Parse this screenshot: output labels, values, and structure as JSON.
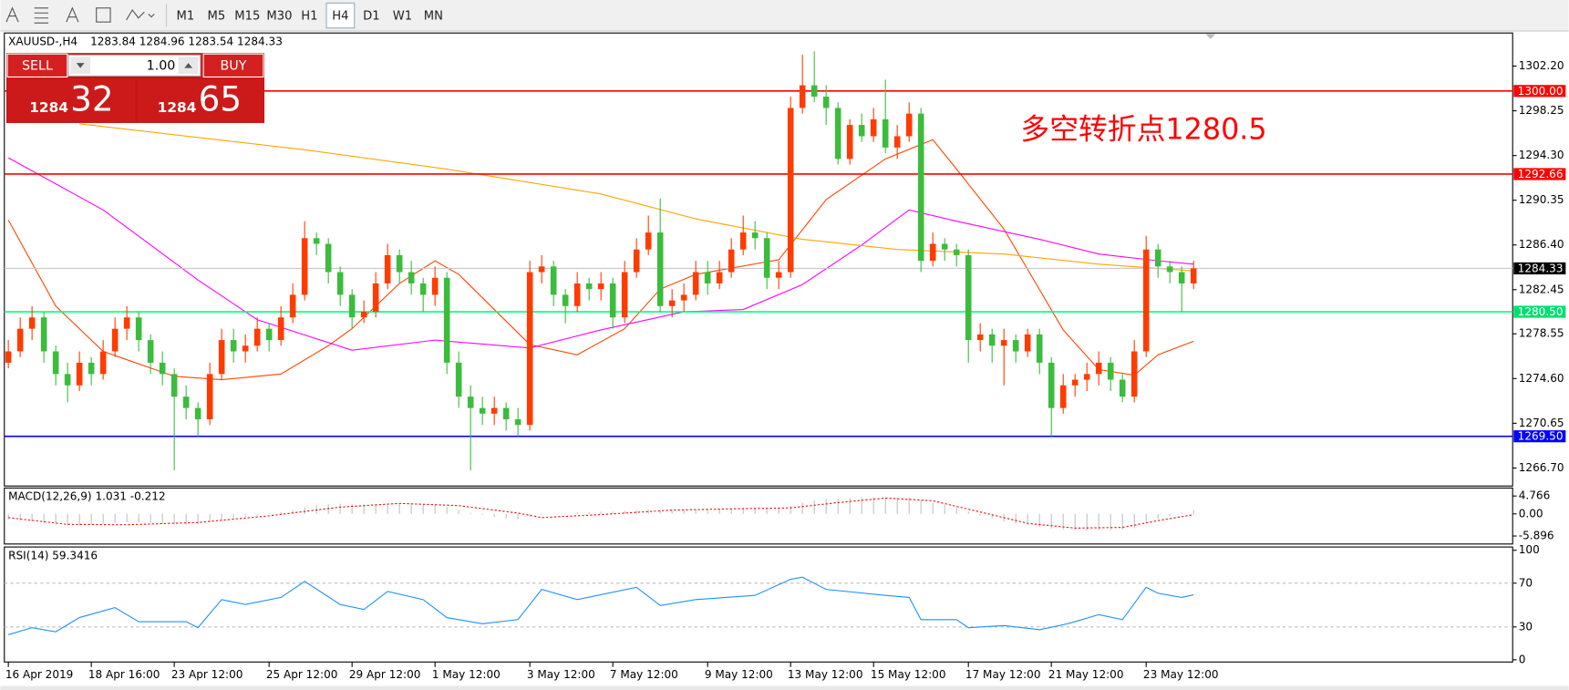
{
  "toolbar": {
    "timeframes": [
      "M1",
      "M5",
      "M15",
      "M30",
      "H1",
      "H4",
      "D1",
      "W1",
      "MN"
    ]
  },
  "trade_panel": {
    "sell": "SELL",
    "lot": "1.00",
    "buy": "BUY",
    "bid_big": "1284",
    "bid_small": "32",
    "ask_big": "1284",
    "ask_small": "65"
  },
  "chart_data": [
    {
      "type": "candlestick",
      "title": "XAUUSD-,H4",
      "quote": "1283.84 1284.96 1283.54 1284.33",
      "annotation": "多空转折点1280.5",
      "up_color": "#ff3c00",
      "down_color": "#3cbc3c",
      "categories": [
        "16 Apr 2019",
        null,
        null,
        null,
        null,
        null,
        null,
        "18 Apr 16:00",
        null,
        null,
        null,
        null,
        null,
        null,
        "23 Apr 12:00",
        null,
        null,
        null,
        null,
        null,
        null,
        null,
        "25 Apr 12:00",
        null,
        null,
        null,
        null,
        null,
        null,
        "29 Apr 12:00",
        null,
        null,
        null,
        null,
        null,
        null,
        "1 May 12:00",
        null,
        null,
        null,
        null,
        null,
        null,
        null,
        "3 May 12:00",
        null,
        null,
        null,
        null,
        null,
        null,
        "7 May 12:00",
        null,
        null,
        null,
        null,
        null,
        null,
        null,
        "9 May 12:00",
        null,
        null,
        null,
        null,
        null,
        null,
        "13 May 12:00",
        null,
        null,
        null,
        null,
        null,
        null,
        "15 May 12:00",
        null,
        null,
        null,
        null,
        null,
        null,
        null,
        "17 May 12:00",
        null,
        null,
        null,
        null,
        null,
        null,
        "21 May 12:00",
        null,
        null,
        null,
        null,
        null,
        null,
        null,
        "23 May 12:00",
        null,
        null,
        null,
        null
      ],
      "candles": [
        [
          1276,
          1278,
          1275.5,
          1277
        ],
        [
          1277,
          1280,
          1276.5,
          1279
        ],
        [
          1279,
          1281,
          1278,
          1280
        ],
        [
          1280,
          1280.5,
          1276,
          1277
        ],
        [
          1277,
          1277.5,
          1274,
          1275
        ],
        [
          1275,
          1276,
          1272.5,
          1274
        ],
        [
          1274,
          1277,
          1273.5,
          1276
        ],
        [
          1276,
          1276.5,
          1274,
          1275
        ],
        [
          1275,
          1278,
          1274.5,
          1277
        ],
        [
          1277,
          1280,
          1276.5,
          1279
        ],
        [
          1279,
          1281,
          1278,
          1280
        ],
        [
          1280,
          1280.5,
          1277,
          1278
        ],
        [
          1278,
          1278.5,
          1275,
          1276
        ],
        [
          1276,
          1277,
          1274,
          1275
        ],
        [
          1275,
          1275.5,
          1266.5,
          1273
        ],
        [
          1273,
          1274,
          1271,
          1272
        ],
        [
          1272,
          1272.5,
          1269.5,
          1271
        ],
        [
          1271,
          1276,
          1270.5,
          1275
        ],
        [
          1275,
          1279,
          1274.5,
          1278
        ],
        [
          1278,
          1279,
          1276,
          1277
        ],
        [
          1277,
          1278.5,
          1276,
          1277.5
        ],
        [
          1277.5,
          1280,
          1277,
          1279
        ],
        [
          1279,
          1279.5,
          1277,
          1278
        ],
        [
          1278,
          1281,
          1277.5,
          1280
        ],
        [
          1280,
          1283,
          1279.5,
          1282
        ],
        [
          1282,
          1288.5,
          1281.5,
          1287
        ],
        [
          1287,
          1287.5,
          1285.5,
          1286.5
        ],
        [
          1286.5,
          1287,
          1283,
          1284
        ],
        [
          1284,
          1284.5,
          1281,
          1282
        ],
        [
          1282,
          1282.5,
          1279,
          1280
        ],
        [
          1280,
          1281.5,
          1279.5,
          1280.5
        ],
        [
          1280.5,
          1284,
          1280,
          1283
        ],
        [
          1283,
          1286.5,
          1282.5,
          1285.5
        ],
        [
          1285.5,
          1286,
          1283,
          1284
        ],
        [
          1284,
          1285,
          1282,
          1283
        ],
        [
          1283,
          1283.5,
          1280.5,
          1282
        ],
        [
          1282,
          1284.5,
          1281,
          1283.5
        ],
        [
          1283.5,
          1284,
          1275,
          1276
        ],
        [
          1276,
          1277,
          1272,
          1273
        ],
        [
          1273,
          1274,
          1266.5,
          1272
        ],
        [
          1272,
          1273,
          1270.5,
          1271.5
        ],
        [
          1271.5,
          1273,
          1270.5,
          1272
        ],
        [
          1272,
          1272.5,
          1270,
          1271
        ],
        [
          1271,
          1272,
          1269.5,
          1270.5
        ],
        [
          1270.5,
          1285,
          1270,
          1284
        ],
        [
          1284,
          1285.5,
          1283,
          1284.5
        ],
        [
          1284.5,
          1285,
          1281,
          1282
        ],
        [
          1282,
          1282.5,
          1279.5,
          1281
        ],
        [
          1281,
          1284,
          1280.5,
          1283
        ],
        [
          1283,
          1283.5,
          1281.5,
          1282.5
        ],
        [
          1282.5,
          1284,
          1281.5,
          1283
        ],
        [
          1283,
          1283.5,
          1279,
          1280
        ],
        [
          1280,
          1285,
          1279.5,
          1284
        ],
        [
          1284,
          1287,
          1283.5,
          1286
        ],
        [
          1286,
          1289,
          1285.5,
          1287.5
        ],
        [
          1287.5,
          1290.5,
          1280.5,
          1281
        ],
        [
          1281,
          1282.5,
          1280,
          1281.5
        ],
        [
          1281.5,
          1283,
          1280.5,
          1282
        ],
        [
          1282,
          1285,
          1281.5,
          1284
        ],
        [
          1284,
          1285,
          1282,
          1283
        ],
        [
          1283,
          1285,
          1282.5,
          1284
        ],
        [
          1284,
          1287,
          1283.5,
          1286
        ],
        [
          1286,
          1289,
          1285.5,
          1287.5
        ],
        [
          1287.5,
          1288.5,
          1286,
          1287
        ],
        [
          1287,
          1287.5,
          1282.5,
          1283.5
        ],
        [
          1283.5,
          1285,
          1282.5,
          1284
        ],
        [
          1284,
          1299.5,
          1283.5,
          1298.5
        ],
        [
          1298.5,
          1303.2,
          1298,
          1300.5
        ],
        [
          1300.5,
          1303.5,
          1299,
          1299.5
        ],
        [
          1299.5,
          1300.5,
          1297,
          1298.5
        ],
        [
          1298.5,
          1299,
          1293.5,
          1294
        ],
        [
          1294,
          1297.5,
          1293.5,
          1297
        ],
        [
          1297,
          1298,
          1295.5,
          1296
        ],
        [
          1296,
          1298.5,
          1295.5,
          1297.5
        ],
        [
          1297.5,
          1301,
          1294.5,
          1295
        ],
        [
          1295,
          1297,
          1294,
          1296
        ],
        [
          1296,
          1299,
          1295.5,
          1298
        ],
        [
          1298,
          1298.5,
          1284,
          1285
        ],
        [
          1285,
          1287.5,
          1284.5,
          1286.5
        ],
        [
          1286.5,
          1287,
          1285,
          1286
        ],
        [
          1286,
          1286.5,
          1284.5,
          1285.5
        ],
        [
          1285.5,
          1286,
          1276,
          1278
        ],
        [
          1278,
          1279.5,
          1277,
          1278.5
        ],
        [
          1278.5,
          1279,
          1276,
          1277.5
        ],
        [
          1277.5,
          1279,
          1274,
          1278
        ],
        [
          1278,
          1278.5,
          1276,
          1277
        ],
        [
          1277,
          1279,
          1276.5,
          1278.5
        ],
        [
          1278.5,
          1279,
          1275,
          1276
        ],
        [
          1276,
          1276.5,
          1269.5,
          1272
        ],
        [
          1272,
          1275,
          1271.5,
          1274
        ],
        [
          1274,
          1275,
          1273,
          1274.5
        ],
        [
          1274.5,
          1276,
          1273.5,
          1275
        ],
        [
          1275,
          1277,
          1274,
          1276
        ],
        [
          1276,
          1276.5,
          1273.5,
          1274.5
        ],
        [
          1274.5,
          1275,
          1272.5,
          1273
        ],
        [
          1273,
          1278,
          1272.5,
          1277
        ],
        [
          1277,
          1287.2,
          1276.5,
          1286
        ],
        [
          1286,
          1286.5,
          1283.5,
          1284.5
        ],
        [
          1284.5,
          1285,
          1283,
          1284
        ],
        [
          1284,
          1284.5,
          1280.5,
          1283
        ],
        [
          1283,
          1285,
          1282.5,
          1284.33
        ]
      ],
      "lines": [
        {
          "color": "#ff4500",
          "x": [
            0,
            4,
            8,
            14,
            18,
            23,
            27,
            29,
            33,
            36,
            38,
            44,
            48,
            52,
            55,
            58,
            65,
            69,
            74,
            78,
            80,
            84,
            89,
            92,
            95,
            97,
            100
          ],
          "values": [
            1288.6,
            1281,
            1277,
            1274.8,
            1274.5,
            1275,
            1277.5,
            1279,
            1283,
            1285,
            1283.8,
            1277.6,
            1276.7,
            1279,
            1282.5,
            1283.8,
            1285.1,
            1290.4,
            1294,
            1295.7,
            1293.1,
            1287.8,
            1278.9,
            1275.4,
            1274.9,
            1276.7,
            1277.9
          ]
        },
        {
          "color": "#ff00ff",
          "x": [
            0,
            8,
            16,
            21,
            29,
            36,
            44,
            50,
            57,
            62,
            67,
            72,
            76,
            80,
            87,
            92,
            97,
            100
          ],
          "values": [
            1294.1,
            1289.5,
            1283.3,
            1279.8,
            1277.1,
            1278,
            1277.3,
            1278.9,
            1280.5,
            1280.7,
            1282.9,
            1286.4,
            1289.5,
            1288.5,
            1286.9,
            1285.6,
            1285,
            1284.7
          ]
        },
        {
          "color": "#ffa500",
          "x": [
            6,
            25,
            37,
            50,
            58,
            67,
            75,
            84,
            92,
            100
          ],
          "values": [
            1297.1,
            1294.8,
            1293.1,
            1290.9,
            1288.7,
            1286.9,
            1286,
            1285.6,
            1284.7,
            1284.1
          ]
        }
      ],
      "levels": [
        {
          "value": 1300,
          "label": "1300.00",
          "color": "#ff0000",
          "box": "#ff0000"
        },
        {
          "value": 1292.66,
          "label": "1292.66",
          "color": "#ff0000",
          "box": "#ff0000"
        },
        {
          "value": 1284.33,
          "label": "1284.33",
          "color": "#c8c8c8",
          "box": "#000000"
        },
        {
          "value": 1280.5,
          "label": "1280.50",
          "color": "#00ff7f",
          "box": "#00e070"
        },
        {
          "value": 1269.5,
          "label": "1269.50",
          "color": "#0000ff",
          "box": "#0000ff"
        }
      ],
      "ylim": [
        1265.11,
        1305.12
      ],
      "yticks": [
        {
          "value": 1302.2,
          "label": "1302.20"
        },
        {
          "value": 1298.25,
          "label": "1298.25"
        },
        {
          "value": 1294.3,
          "label": "1294.30"
        },
        {
          "value": 1290.35,
          "label": "1290.35"
        },
        {
          "value": 1286.4,
          "label": "1286.40"
        },
        {
          "value": 1282.45,
          "label": "1282.45"
        },
        {
          "value": 1278.55,
          "label": "1278.55"
        },
        {
          "value": 1274.6,
          "label": "1274.60"
        },
        {
          "value": 1270.65,
          "label": "1270.65"
        },
        {
          "value": 1266.7,
          "label": "1266.70"
        }
      ]
    },
    {
      "type": "macd",
      "title": "MACD(12,26,9) 1.031 -0.212",
      "color": "#c0c0c0",
      "values": [
        -1.5,
        -1.8,
        -2,
        -2.5,
        -2.8,
        -3,
        -3,
        -2.9,
        -2.7,
        -2.4,
        -2.2,
        -2.2,
        -2.4,
        -2.6,
        -2.8,
        -2.9,
        -2.8,
        -2.2,
        -1.6,
        -1.2,
        -0.8,
        -0.4,
        0,
        0.5,
        1,
        1.8,
        2.3,
        2.6,
        2.7,
        2.6,
        2.5,
        2.6,
        2.8,
        2.8,
        2.7,
        2.5,
        2.4,
        1.8,
        1,
        0.3,
        -0.3,
        -0.8,
        -1.2,
        -1.5,
        -0.8,
        -0.3,
        0,
        0.2,
        0.4,
        0.5,
        0.6,
        0.6,
        0.8,
        1,
        1.2,
        1,
        1,
        1,
        1.1,
        1.2,
        1.3,
        1.4,
        1.5,
        1.5,
        1.4,
        1.4,
        2.2,
        3,
        3.6,
        4,
        4,
        4.2,
        4.3,
        4.4,
        4.4,
        4.3,
        4.4,
        3.6,
        3,
        2.4,
        1.8,
        0.6,
        -0.4,
        -1.2,
        -2,
        -2.6,
        -3,
        -3.4,
        -3.9,
        -4.2,
        -4.4,
        -4.4,
        -4.3,
        -4.3,
        -4.2,
        -3.8,
        -2.5,
        -1.3,
        -0.5,
        0.3,
        1.031
      ],
      "signal": {
        "color": "#ff0000",
        "x": [
          0,
          5,
          10,
          16,
          22,
          28,
          33,
          38,
          43,
          45,
          50,
          56,
          62,
          66,
          70,
          74,
          78,
          82,
          86,
          90,
          94,
          97,
          100
        ],
        "values": [
          -1,
          -2.8,
          -2.9,
          -2.3,
          -0.5,
          1.8,
          2.8,
          2.2,
          0.2,
          -1,
          -0.2,
          1,
          1.4,
          1.6,
          3,
          4.2,
          3.5,
          0.5,
          -2.5,
          -3.8,
          -3.6,
          -1.8,
          -0.212
        ]
      },
      "ylim": [
        -8.03,
        6.9
      ],
      "yticks": [
        4.766,
        {
          "value": 0,
          "label": "0.00"
        },
        -5.896
      ]
    },
    {
      "type": "line",
      "title": "RSI(14) 59.3416",
      "series": [
        {
          "color": "#1e90ff",
          "x": [
            0,
            2,
            4,
            6,
            9,
            11,
            15,
            16,
            18,
            20,
            23,
            25,
            28,
            30,
            32,
            35,
            37,
            40,
            43,
            45,
            48,
            53,
            55,
            58,
            63,
            66,
            67,
            69,
            74,
            76,
            77,
            80,
            81,
            84,
            87,
            89,
            90,
            92,
            94,
            96,
            97,
            99,
            100
          ],
          "values": [
            22.9,
            29.3,
            25.6,
            38.5,
            47.7,
            34.8,
            34.8,
            29.3,
            55,
            50.5,
            57,
            71.7,
            50.5,
            45.9,
            62.5,
            55,
            38.5,
            33,
            36.7,
            64.3,
            55,
            66.2,
            49.6,
            55,
            58.8,
            73.5,
            75.4,
            64.3,
            58.8,
            57,
            36.7,
            36.7,
            29.3,
            31.2,
            27.5,
            32,
            34.8,
            41.3,
            36.7,
            66.2,
            60.7,
            57,
            59.3416
          ]
        }
      ],
      "levels": [
        70,
        30
      ],
      "ylim": [
        -2,
        103
      ],
      "yticks": [
        100,
        70,
        30,
        0
      ]
    }
  ]
}
